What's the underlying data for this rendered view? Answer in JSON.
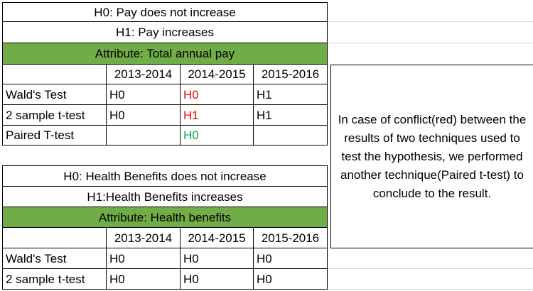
{
  "section1": {
    "h0": "H0: Pay does not increase",
    "h1": "H1: Pay increases",
    "attribute": "Attribute: Total annual pay",
    "columns": [
      "2013-2014",
      "2014-2015",
      "2015-2016"
    ],
    "rows": [
      {
        "label": "Wald's Test",
        "values": [
          "H0",
          "H0",
          "H1"
        ]
      },
      {
        "label": "2 sample t-test",
        "values": [
          "H0",
          "H1",
          "H1"
        ]
      },
      {
        "label": "Paired T-test",
        "values": [
          "",
          "H0",
          ""
        ]
      }
    ]
  },
  "section2": {
    "h0": "H0: Health Benefits does not increase",
    "h1": "H1:Health Benefits increases",
    "attribute": "Attribute: Health benefits",
    "columns": [
      "2013-2014",
      "2014-2015",
      "2015-2016"
    ],
    "rows": [
      {
        "label": "Wald's Test",
        "values": [
          "H0",
          "H0",
          "H0"
        ]
      },
      {
        "label": "2 sample t-test",
        "values": [
          "H0",
          "H0",
          "H0"
        ]
      }
    ]
  },
  "note": "In case of conflict(red) between the results of two techniques used to test the hypothesis, we performed another technique(Paired t-test) to conclude to the result.",
  "colors": {
    "header_fill": "#70AD47",
    "conflict_text": "#FF0000",
    "resolved_text": "#00B050"
  }
}
